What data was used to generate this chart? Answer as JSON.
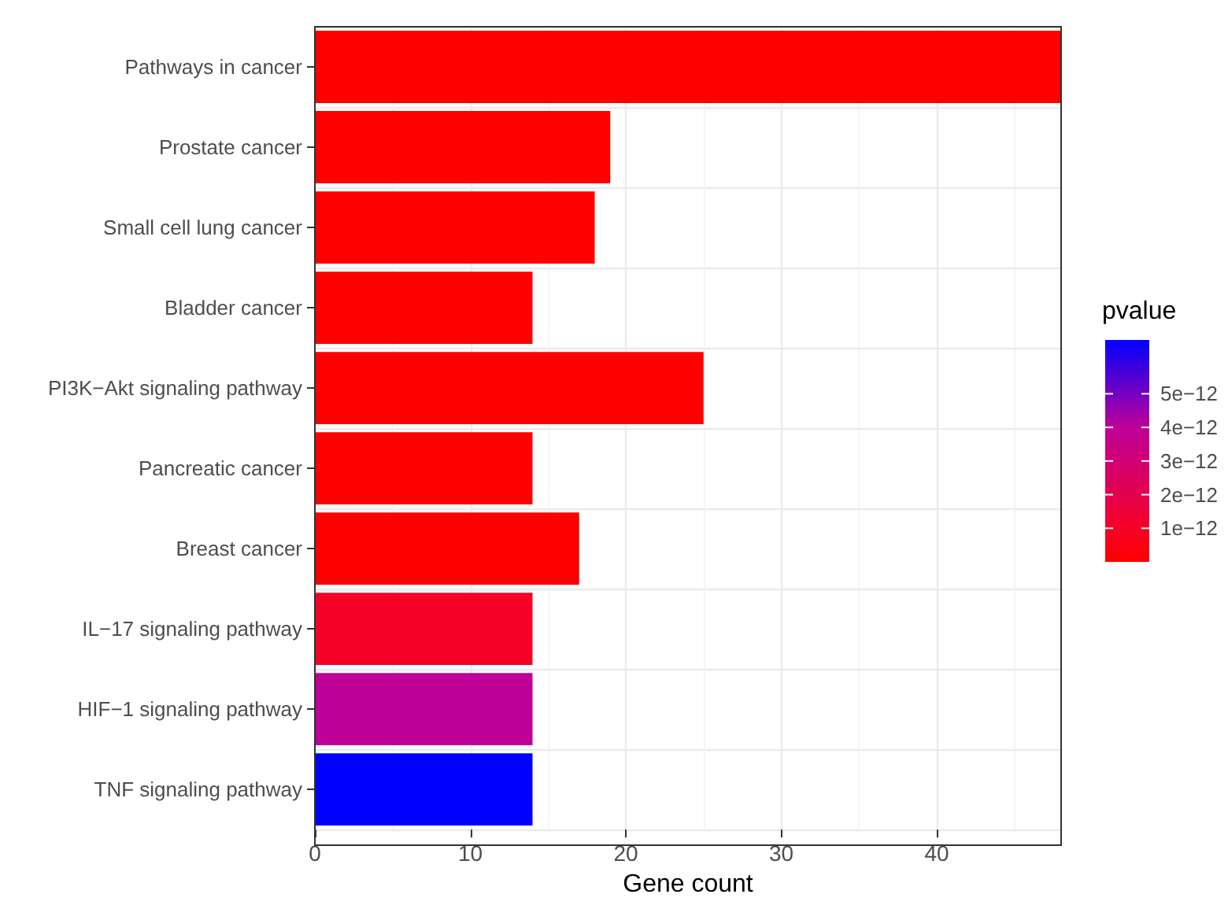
{
  "chart_data": {
    "type": "bar",
    "orientation": "horizontal",
    "xlabel": "Gene count",
    "clabel": "pvalue",
    "categories": [
      "Pathways in cancer",
      "Prostate cancer",
      "Small cell lung cancer",
      "Bladder cancer",
      "PI3K−Akt signaling pathway",
      "Pancreatic cancer",
      "Breast cancer",
      "IL−17 signaling pathway",
      "HIF−1 signaling pathway",
      "TNF signaling pathway"
    ],
    "values": [
      48,
      19,
      18,
      14,
      25,
      14,
      17,
      14,
      14,
      14
    ],
    "colors": [
      "#ff0000",
      "#ff0000",
      "#ff0000",
      "#ff0000",
      "#ff0000",
      "#ff0000",
      "#ff0000",
      "#f50026",
      "#bf0099",
      "#0000ff"
    ],
    "cvalues": [
      0,
      0,
      0,
      0,
      0,
      0,
      0,
      1e-12,
      4e-12,
      6.6e-12
    ],
    "clim": [
      0,
      6.6e-12
    ],
    "cticks": [
      {
        "value": 1e-12,
        "label": "1e−12"
      },
      {
        "value": 2e-12,
        "label": "2e−12"
      },
      {
        "value": 3e-12,
        "label": "3e−12"
      },
      {
        "value": 4e-12,
        "label": "4e−12"
      },
      {
        "value": 5e-12,
        "label": "5e−12"
      }
    ],
    "xlim": [
      0,
      48
    ],
    "xticks": [
      0,
      10,
      20,
      30,
      40
    ],
    "grid": true
  }
}
